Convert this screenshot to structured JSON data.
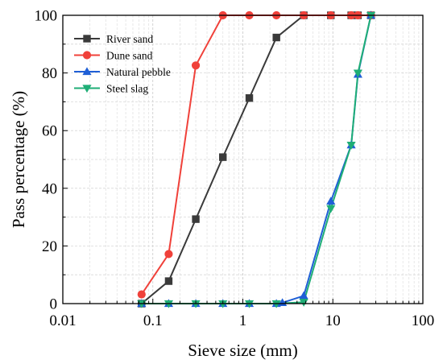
{
  "chart_data": {
    "type": "line",
    "xlabel": "Sieve size (mm)",
    "ylabel": "Pass percentage (%)",
    "x_scale": "log",
    "xlim": [
      0.01,
      100
    ],
    "ylim": [
      0,
      100
    ],
    "x_ticks": [
      0.01,
      0.1,
      1,
      10,
      100
    ],
    "x_tick_labels": [
      "0.01",
      "0.1",
      "1",
      "10",
      "100"
    ],
    "y_ticks": [
      0,
      20,
      40,
      60,
      80,
      100
    ],
    "y_tick_labels": [
      "0",
      "20",
      "40",
      "60",
      "80",
      "100"
    ],
    "grid": true,
    "legend_position": "top-left",
    "series": [
      {
        "name": "River sand",
        "color": "#3a3a3a",
        "marker": "square",
        "x": [
          0.075,
          0.15,
          0.3,
          0.6,
          1.18,
          2.36,
          4.75,
          9.5,
          16,
          19,
          26.5
        ],
        "y": [
          0,
          7.8,
          29.3,
          50.8,
          71.3,
          92.3,
          100,
          100,
          100,
          100,
          100
        ]
      },
      {
        "name": "Dune sand",
        "color": "#f0413a",
        "marker": "circle",
        "x": [
          0.075,
          0.15,
          0.3,
          0.6,
          1.18,
          2.36,
          4.75,
          9.5,
          16,
          19,
          26.5
        ],
        "y": [
          3.2,
          17.2,
          82.6,
          100,
          100,
          100,
          100,
          100,
          100,
          100,
          100
        ]
      },
      {
        "name": "Natural pebble",
        "color": "#1f5fd6",
        "marker": "triangle-up",
        "x": [
          0.075,
          0.15,
          0.3,
          0.6,
          1.18,
          2.36,
          2.75,
          4.75,
          9.5,
          16,
          19,
          26.5
        ],
        "y": [
          0,
          0,
          0,
          0,
          0,
          0,
          0.3,
          2.7,
          35.5,
          55,
          79.5,
          100
        ]
      },
      {
        "name": "Steel slag",
        "color": "#1fae76",
        "marker": "triangle-down",
        "x": [
          0.075,
          0.15,
          0.3,
          0.6,
          1.18,
          2.36,
          4.75,
          9.5,
          16,
          19,
          26.5
        ],
        "y": [
          0,
          0,
          0,
          0,
          0,
          0,
          0.5,
          33,
          55,
          80,
          100
        ]
      }
    ]
  }
}
